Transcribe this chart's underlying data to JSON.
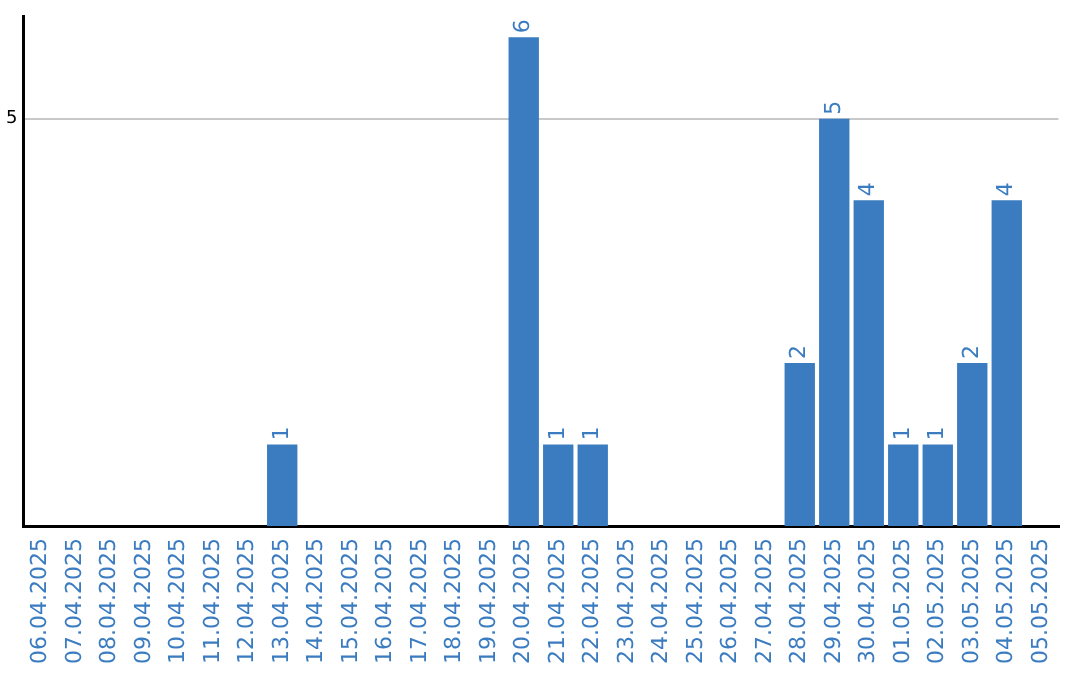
{
  "chart_data": {
    "type": "bar",
    "categories": [
      "06.04.2025",
      "07.04.2025",
      "08.04.2025",
      "09.04.2025",
      "10.04.2025",
      "11.04.2025",
      "12.04.2025",
      "13.04.2025",
      "14.04.2025",
      "15.04.2025",
      "16.04.2025",
      "17.04.2025",
      "18.04.2025",
      "19.04.2025",
      "20.04.2025",
      "21.04.2025",
      "22.04.2025",
      "23.04.2025",
      "24.04.2025",
      "25.04.2025",
      "26.04.2025",
      "27.04.2025",
      "28.04.2025",
      "29.04.2025",
      "30.04.2025",
      "01.05.2025",
      "02.05.2025",
      "03.05.2025",
      "04.05.2025",
      "05.05.2025"
    ],
    "values": [
      0,
      0,
      0,
      0,
      0,
      0,
      0,
      1,
      0,
      0,
      0,
      0,
      0,
      0,
      6,
      1,
      1,
      0,
      0,
      0,
      0,
      0,
      2,
      5,
      4,
      1,
      1,
      2,
      4,
      0
    ],
    "value_labels": [
      null,
      null,
      null,
      null,
      null,
      null,
      null,
      "1",
      null,
      null,
      null,
      null,
      null,
      null,
      "6",
      "1",
      "1",
      null,
      null,
      null,
      null,
      null,
      "2",
      "5",
      "4",
      "1",
      "1",
      "2",
      "4",
      null
    ],
    "color": "#3b7cc1",
    "ylim": [
      0,
      6.25
    ],
    "yticks": [
      5
    ],
    "grid": "y",
    "legend": false
  }
}
